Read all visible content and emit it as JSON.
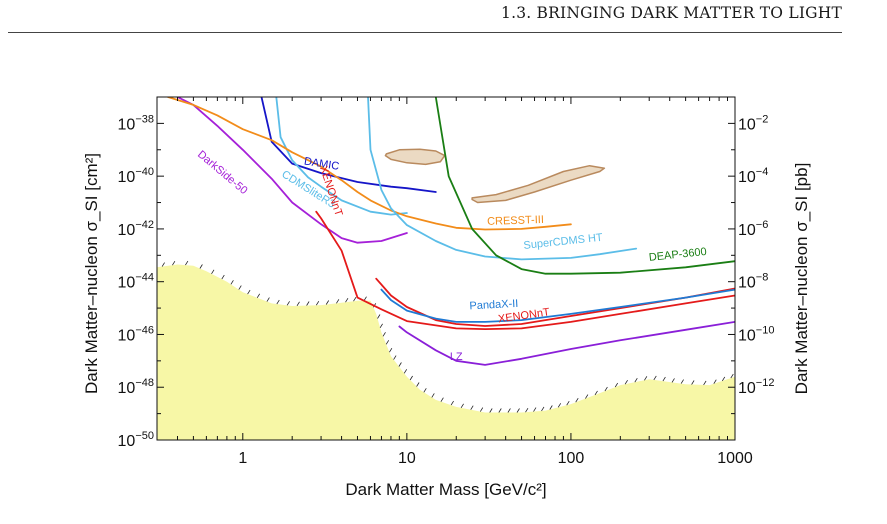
{
  "header": {
    "running_title": "1.3.  BRINGING DARK MATTER TO LIGHT"
  },
  "chart_data": {
    "type": "line",
    "title": "",
    "xlabel": "Dark Matter Mass [GeV/c²]",
    "ylabel": "Dark Matter–nucleon σ_SI [cm²]",
    "y2label": "Dark Matter–nucleon σ_SI [pb]",
    "xscale": "log",
    "yscale": "log",
    "xlim": [
      0.3,
      1000
    ],
    "ylim": [
      1e-50,
      1e-37
    ],
    "grid": false,
    "x_ticks": [
      {
        "value": 1,
        "label": "1"
      },
      {
        "value": 10,
        "label": "10"
      },
      {
        "value": 100,
        "label": "100"
      },
      {
        "value": 1000,
        "label": "1000"
      }
    ],
    "y_ticks": [
      {
        "value": 1e-38,
        "base": "10",
        "exp": "−38"
      },
      {
        "value": 1e-40,
        "base": "10",
        "exp": "−40"
      },
      {
        "value": 1e-42,
        "base": "10",
        "exp": "−42"
      },
      {
        "value": 1e-44,
        "base": "10",
        "exp": "−44"
      },
      {
        "value": 1e-46,
        "base": "10",
        "exp": "−46"
      },
      {
        "value": 1e-48,
        "base": "10",
        "exp": "−48"
      },
      {
        "value": 1e-50,
        "base": "10",
        "exp": "−50"
      }
    ],
    "y2_ticks": [
      {
        "value": 1e-38,
        "base": "10",
        "exp": "−2"
      },
      {
        "value": 1e-40,
        "base": "10",
        "exp": "−4"
      },
      {
        "value": 1e-42,
        "base": "10",
        "exp": "−6"
      },
      {
        "value": 1e-44,
        "base": "10",
        "exp": "−8"
      },
      {
        "value": 1e-46,
        "base": "10",
        "exp": "−10"
      },
      {
        "value": 1e-48,
        "base": "10",
        "exp": "−12"
      }
    ],
    "neutrino_floor": {
      "color": "#f7f7a6",
      "points": [
        [
          0.3,
          3.5e-44
        ],
        [
          0.4,
          4.5e-44
        ],
        [
          0.5,
          4e-44
        ],
        [
          0.6,
          2.5e-44
        ],
        [
          0.8,
          1e-44
        ],
        [
          1,
          4e-45
        ],
        [
          1.5,
          1.5e-45
        ],
        [
          2,
          1.2e-45
        ],
        [
          3,
          1.3e-45
        ],
        [
          4,
          1.6e-45
        ],
        [
          5,
          1.9e-45
        ],
        [
          6,
          1.9e-45
        ],
        [
          6.5,
          6e-46
        ],
        [
          7,
          1.2e-46
        ],
        [
          8,
          1.5e-47
        ],
        [
          10,
          2.5e-48
        ],
        [
          12,
          8e-49
        ],
        [
          15,
          3.3e-49
        ],
        [
          20,
          1.8e-49
        ],
        [
          30,
          1.1e-49
        ],
        [
          50,
          1.1e-49
        ],
        [
          70,
          1.3e-49
        ],
        [
          100,
          2.3e-49
        ],
        [
          150,
          6e-49
        ],
        [
          200,
          1.2e-48
        ],
        [
          300,
          2e-48
        ],
        [
          500,
          1.3e-48
        ],
        [
          700,
          1.2e-48
        ],
        [
          1000,
          2.5e-48
        ]
      ]
    },
    "regions": [
      {
        "name": "",
        "fill": "#e8d3b9",
        "stroke": "#b98a5e",
        "points": [
          [
            7.5,
            7e-40
          ],
          [
            9,
            1e-39
          ],
          [
            12,
            1.05e-39
          ],
          [
            15,
            9e-40
          ],
          [
            17,
            6e-40
          ],
          [
            16,
            3.5e-40
          ],
          [
            13,
            2.8e-40
          ],
          [
            10,
            3.2e-40
          ],
          [
            8,
            4.3e-40
          ],
          [
            7.4,
            6e-40
          ]
        ]
      },
      {
        "name": "",
        "fill": "#e8d3b9",
        "stroke": "#b98a5e",
        "points": [
          [
            25,
            1.5e-41
          ],
          [
            35,
            2e-41
          ],
          [
            55,
            4.5e-41
          ],
          [
            90,
            1.5e-40
          ],
          [
            130,
            2.5e-40
          ],
          [
            160,
            2e-40
          ],
          [
            150,
            1.5e-40
          ],
          [
            100,
            7e-41
          ],
          [
            60,
            2.5e-41
          ],
          [
            40,
            1.2e-41
          ],
          [
            27,
            1e-41
          ],
          [
            25,
            1.3e-41
          ]
        ]
      }
    ],
    "series": [
      {
        "name": "DAMIC",
        "color": "#1515c8",
        "points": [
          [
            1.3,
            1e-37
          ],
          [
            1.5,
            2e-39
          ],
          [
            2,
            3e-40
          ],
          [
            3,
            1.3e-40
          ],
          [
            5,
            6e-41
          ],
          [
            8,
            4e-41
          ],
          [
            10,
            3.5e-41
          ],
          [
            15,
            2.5e-41
          ]
        ],
        "label_at": [
          3.0,
          2.2e-40
        ],
        "label_rot": 9
      },
      {
        "name": "DarkSide-50",
        "color": "#a520d8",
        "points": [
          [
            0.4,
            1e-37
          ],
          [
            0.5,
            5e-38
          ],
          [
            0.7,
            8e-39
          ],
          [
            1,
            1e-39
          ],
          [
            1.5,
            8e-41
          ],
          [
            2,
            1e-41
          ],
          [
            3,
            1.5e-42
          ],
          [
            4,
            4.5e-43
          ],
          [
            5,
            3e-43
          ],
          [
            7,
            3.5e-43
          ],
          [
            10,
            7e-43
          ]
        ],
        "label_at": [
          0.73,
          1.1e-40
        ],
        "label_rot": 40
      },
      {
        "name": "CDMSliteR3",
        "color": "#5bbde8",
        "points": [
          [
            1.6,
            1e-37
          ],
          [
            1.7,
            3e-39
          ],
          [
            2,
            4e-40
          ],
          [
            2.5,
            9e-41
          ],
          [
            3,
            4e-41
          ],
          [
            4,
            1.2e-41
          ],
          [
            6,
            4.5e-42
          ],
          [
            8,
            3.5e-42
          ],
          [
            10,
            4e-42
          ]
        ],
        "label_at": [
          2.45,
          2.5e-41
        ],
        "label_rot": 32
      },
      {
        "name": "CRESST-III",
        "color": "#f28c1a",
        "points": [
          [
            0.35,
            1e-37
          ],
          [
            0.5,
            5e-38
          ],
          [
            0.7,
            2e-38
          ],
          [
            1,
            6e-39
          ],
          [
            1.5,
            2.3e-39
          ],
          [
            2,
            8e-40
          ],
          [
            3,
            2.3e-40
          ],
          [
            4,
            7e-41
          ],
          [
            5,
            2.5e-41
          ],
          [
            6,
            1.2e-41
          ],
          [
            8,
            5e-42
          ],
          [
            10,
            3e-42
          ],
          [
            15,
            1.6e-42
          ],
          [
            20,
            1.1e-42
          ],
          [
            30,
            9.5e-43
          ],
          [
            50,
            1e-42
          ],
          [
            70,
            1.2e-42
          ],
          [
            100,
            1.5e-42
          ]
        ],
        "label_at": [
          46,
          1.55e-42
        ],
        "label_rot": -2
      },
      {
        "name": "XENONnT",
        "color": "#e41a1a",
        "points": [
          [
            2.8,
            4.5e-42
          ],
          [
            3,
            2.5e-42
          ],
          [
            4,
            1.5e-43
          ],
          [
            5,
            2.5e-45
          ],
          [
            7,
            9e-46
          ],
          [
            10,
            3.2e-46
          ],
          [
            15,
            2.2e-46
          ],
          [
            20,
            1.7e-46
          ],
          [
            30,
            1.6e-46
          ],
          [
            50,
            1.7e-46
          ],
          [
            100,
            3e-46
          ],
          [
            200,
            6e-46
          ],
          [
            500,
            1.5e-45
          ],
          [
            1000,
            3e-45
          ]
        ],
        "label_at": [
          3.3,
          2.5e-41
        ],
        "label_rot": 72
      },
      {
        "name": "XENONnT",
        "color": "#e41a1a",
        "points": [
          [
            6.5,
            1.3e-44
          ],
          [
            8,
            3e-45
          ],
          [
            10,
            1.1e-45
          ],
          [
            15,
            3.5e-46
          ],
          [
            20,
            2.5e-46
          ],
          [
            30,
            2.1e-46
          ],
          [
            50,
            2.5e-46
          ],
          [
            100,
            5e-46
          ],
          [
            200,
            1e-45
          ],
          [
            500,
            2.5e-45
          ],
          [
            1000,
            5.5e-45
          ]
        ],
        "label_at": [
          52,
          3.9e-46
        ],
        "label_rot": -8
      },
      {
        "name": "SuperCDMS HT",
        "color": "#5bbde8",
        "points": [
          [
            5.8,
            1e-37
          ],
          [
            6,
            1e-39
          ],
          [
            7,
            3e-41
          ],
          [
            8,
            6e-42
          ],
          [
            10,
            1.4e-42
          ],
          [
            15,
            3.5e-43
          ],
          [
            20,
            1.6e-43
          ],
          [
            30,
            9e-44
          ],
          [
            50,
            7e-44
          ],
          [
            100,
            8e-44
          ],
          [
            150,
            1.1e-43
          ],
          [
            250,
            1.8e-43
          ]
        ],
        "label_at": [
          90,
          2.5e-43
        ],
        "label_rot": -6
      },
      {
        "name": "DEAP-3600",
        "color": "#1a7e14",
        "points": [
          [
            15,
            1e-37
          ],
          [
            18,
            1e-40
          ],
          [
            25,
            1e-42
          ],
          [
            35,
            1e-43
          ],
          [
            50,
            3e-44
          ],
          [
            70,
            2e-44
          ],
          [
            100,
            2e-44
          ],
          [
            200,
            2.2e-44
          ],
          [
            500,
            3.5e-44
          ],
          [
            1000,
            6e-44
          ]
        ],
        "label_at": [
          450,
          8e-44
        ],
        "label_rot": -6
      },
      {
        "name": "PandaX-II",
        "color": "#1f7ad4",
        "points": [
          [
            7,
            5e-45
          ],
          [
            8,
            2e-45
          ],
          [
            10,
            8e-46
          ],
          [
            15,
            4e-46
          ],
          [
            20,
            3e-46
          ],
          [
            30,
            3e-46
          ],
          [
            50,
            3.5e-46
          ],
          [
            100,
            6e-46
          ],
          [
            200,
            1.1e-45
          ],
          [
            500,
            2.5e-45
          ],
          [
            1000,
            5e-45
          ]
        ],
        "label_at": [
          34,
          1e-45
        ],
        "label_rot": -3
      },
      {
        "name": "LZ",
        "color": "#8a1fd8",
        "points": [
          [
            9,
            2e-46
          ],
          [
            10,
            1.2e-46
          ],
          [
            15,
            2.5e-47
          ],
          [
            20,
            1e-47
          ],
          [
            30,
            7e-48
          ],
          [
            50,
            1.2e-47
          ],
          [
            100,
            2.8e-47
          ],
          [
            200,
            6e-47
          ],
          [
            500,
            1.5e-46
          ],
          [
            1000,
            3e-46
          ]
        ],
        "label_at": [
          20,
          1.1e-47
        ],
        "label_rot": 0
      }
    ]
  }
}
